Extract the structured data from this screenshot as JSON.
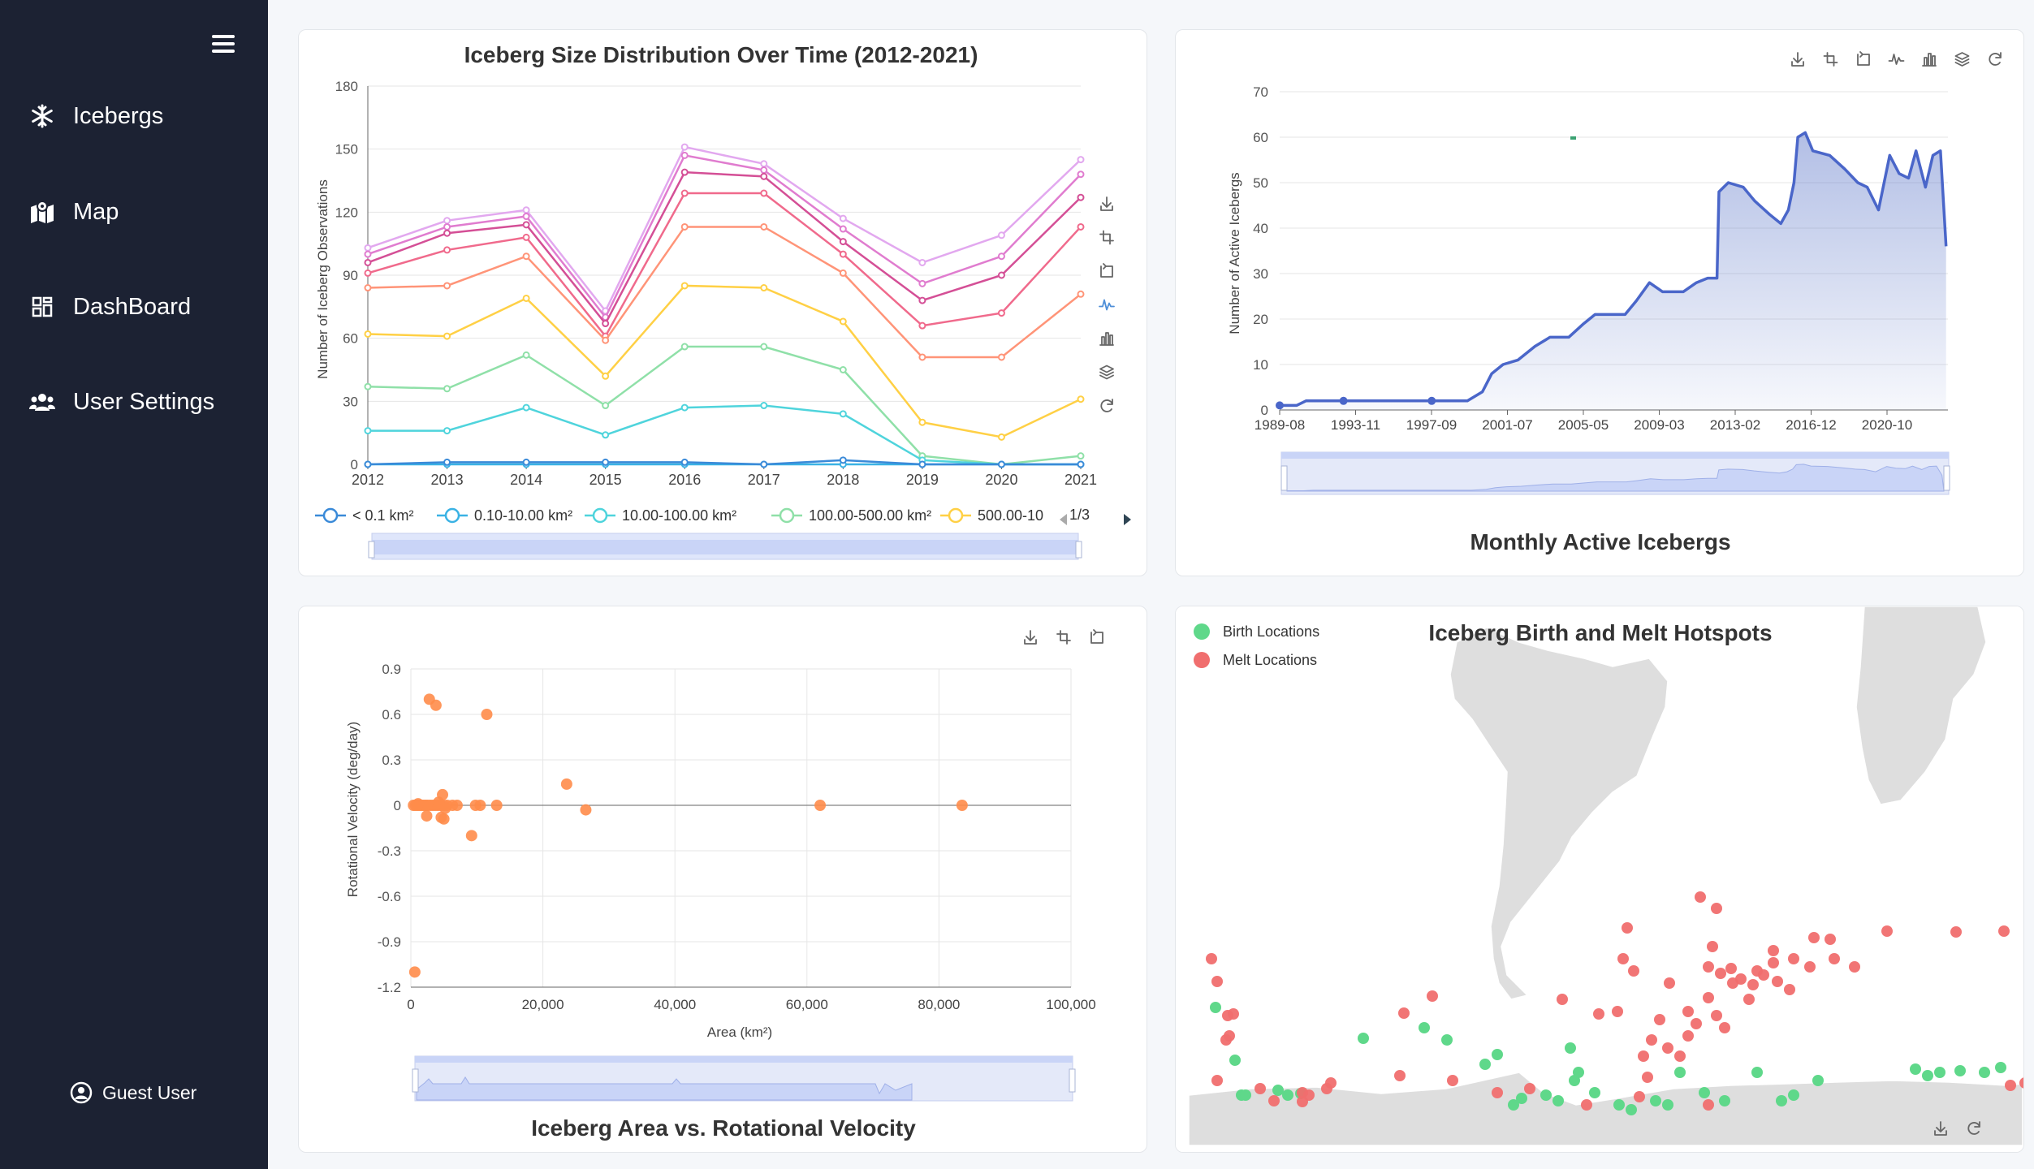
{
  "sidebar": {
    "items": [
      {
        "label": "Icebergs",
        "icon": "snowflake-icon"
      },
      {
        "label": "Map",
        "icon": "map-icon"
      },
      {
        "label": "DashBoard",
        "icon": "dashboard-icon"
      },
      {
        "label": "User Settings",
        "icon": "users-icon"
      }
    ],
    "user": "Guest User"
  },
  "colors": {
    "sidebar": "#1c2233",
    "accent": "#5470c6",
    "scatter": "#ff8c4a",
    "birth": "#5fd88a",
    "melt": "#f06e6e"
  },
  "toolbars": {
    "size_chart": [
      "download-icon",
      "zoom-icon",
      "zoom-reset-icon",
      "line-type-icon",
      "bar-type-icon",
      "stack-icon",
      "restore-icon"
    ],
    "active_chart": [
      "download-icon",
      "zoom-icon",
      "zoom-reset-icon",
      "line-type-icon",
      "bar-type-icon",
      "stack-icon",
      "restore-icon"
    ],
    "scatter_chart": [
      "download-icon",
      "zoom-icon",
      "zoom-reset-icon"
    ],
    "map_chart": [
      "download-icon",
      "restore-icon"
    ]
  },
  "size_chart": {
    "legend_page": "1/3",
    "chart_data": {
      "type": "line",
      "title": "Iceberg Size Distribution Over Time (2012-2021)",
      "ylabel": "Number of Iceberg Observations",
      "xlabel": "",
      "x": [
        "2012",
        "2013",
        "2014",
        "2015",
        "2016",
        "2017",
        "2018",
        "2019",
        "2020",
        "2021"
      ],
      "ylim": [
        0,
        180
      ],
      "yticks": [
        0,
        30,
        60,
        90,
        120,
        150,
        180
      ],
      "grid": true,
      "legend_position": "bottom",
      "series": [
        {
          "name": "< 0.1 km²",
          "color": "#3a8ad8",
          "values": [
            0,
            1,
            1,
            1,
            1,
            0,
            2,
            0,
            0,
            0
          ]
        },
        {
          "name": "0.10-10.00 km²",
          "color": "#3ab2e4",
          "values": [
            0,
            0,
            0,
            0,
            0,
            0,
            0,
            0,
            0,
            0
          ]
        },
        {
          "name": "10.00-100.00 km²",
          "color": "#4fd4dc",
          "values": [
            16,
            16,
            27,
            14,
            27,
            28,
            24,
            2,
            0,
            0
          ]
        },
        {
          "name": "100.00-500.00 km²",
          "color": "#8fe0a8",
          "values": [
            37,
            36,
            52,
            28,
            56,
            56,
            45,
            4,
            0,
            4
          ]
        },
        {
          "name": "500.00-10",
          "color": "#ffd045",
          "values": [
            62,
            61,
            79,
            42,
            85,
            84,
            68,
            20,
            13,
            31
          ]
        },
        {
          "name": "",
          "color": "#ff9478",
          "values": [
            84,
            85,
            99,
            59,
            113,
            113,
            91,
            51,
            51,
            81
          ]
        },
        {
          "name": "",
          "color": "#f06a8c",
          "values": [
            91,
            102,
            108,
            61,
            129,
            129,
            100,
            66,
            72,
            113
          ]
        },
        {
          "name": "",
          "color": "#d44f96",
          "values": [
            96,
            110,
            114,
            67,
            139,
            137,
            106,
            78,
            90,
            127
          ]
        },
        {
          "name": "",
          "color": "#e07ccf",
          "values": [
            100,
            113,
            118,
            70,
            147,
            140,
            112,
            86,
            99,
            138
          ]
        },
        {
          "name": "",
          "color": "#e2a8ef",
          "values": [
            103,
            116,
            121,
            73,
            151,
            143,
            117,
            96,
            109,
            145
          ]
        }
      ]
    }
  },
  "active_chart": {
    "chart_data": {
      "type": "area",
      "title": "Monthly Active Icebergs",
      "ylabel": "Number of Active Icebergs",
      "xlabel": "",
      "x_ticks": [
        "1989-08",
        "1993-11",
        "1997-09",
        "2001-07",
        "2005-05",
        "2009-03",
        "2013-02",
        "2016-12",
        "2020-10"
      ],
      "ylim": [
        0,
        70
      ],
      "yticks": [
        0,
        10,
        20,
        30,
        40,
        50,
        60,
        70
      ],
      "grid": true,
      "series": [
        {
          "points": [
            [
              1989.6,
              1
            ],
            [
              1990.5,
              1
            ],
            [
              1991.0,
              2
            ],
            [
              1995.5,
              2
            ],
            [
              1999.6,
              2
            ],
            [
              2000.4,
              4
            ],
            [
              2000.9,
              8
            ],
            [
              2001.5,
              10
            ],
            [
              2002.3,
              11
            ],
            [
              2003.2,
              14
            ],
            [
              2004.0,
              16
            ],
            [
              2005.0,
              16
            ],
            [
              2005.8,
              19
            ],
            [
              2006.4,
              21
            ],
            [
              2008.0,
              21
            ],
            [
              2008.6,
              24
            ],
            [
              2009.3,
              28
            ],
            [
              2010.0,
              26
            ],
            [
              2011.1,
              26
            ],
            [
              2011.8,
              28
            ],
            [
              2012.4,
              29
            ],
            [
              2012.9,
              29
            ],
            [
              2013.0,
              48
            ],
            [
              2013.5,
              50
            ],
            [
              2014.3,
              49
            ],
            [
              2014.9,
              46
            ],
            [
              2015.7,
              43
            ],
            [
              2016.3,
              41
            ],
            [
              2016.7,
              44
            ],
            [
              2017.0,
              50
            ],
            [
              2017.2,
              60
            ],
            [
              2017.6,
              61
            ],
            [
              2018.0,
              57
            ],
            [
              2018.9,
              56
            ],
            [
              2019.7,
              53
            ],
            [
              2020.4,
              50
            ],
            [
              2020.9,
              49
            ],
            [
              2021.5,
              44
            ],
            [
              2022.1,
              56
            ],
            [
              2022.6,
              52
            ],
            [
              2023.1,
              51
            ],
            [
              2023.5,
              57
            ],
            [
              2024.0,
              49
            ],
            [
              2024.4,
              56
            ],
            [
              2024.8,
              57
            ],
            [
              2025.1,
              36
            ]
          ]
        }
      ]
    }
  },
  "scatter_chart": {
    "chart_data": {
      "type": "scatter",
      "title": "Iceberg Area vs. Rotational Velocity",
      "xlabel": "Area (km²)",
      "ylabel": "Rotational Velocity (deg/day)",
      "xlim": [
        0,
        100000
      ],
      "ylim": [
        -1.2,
        0.9
      ],
      "xticks": [
        "0",
        "20,000",
        "40,000",
        "60,000",
        "80,000",
        "100,000"
      ],
      "yticks": [
        "0.9",
        "0.6",
        "0.3",
        "0",
        "-0.3",
        "-0.6",
        "-0.9",
        "-1.2"
      ],
      "grid": true,
      "points": [
        [
          2800,
          0.7
        ],
        [
          3800,
          0.66
        ],
        [
          11500,
          0.6
        ],
        [
          23600,
          0.14
        ],
        [
          26500,
          -0.03
        ],
        [
          62000,
          0
        ],
        [
          83500,
          0
        ],
        [
          600,
          -1.1
        ],
        [
          4800,
          0.07
        ],
        [
          9200,
          -0.2
        ],
        [
          2400,
          -0.07
        ],
        [
          4600,
          -0.08
        ],
        [
          5000,
          -0.09
        ],
        [
          400,
          0
        ],
        [
          700,
          0
        ],
        [
          1000,
          0
        ],
        [
          1300,
          0
        ],
        [
          1600,
          0
        ],
        [
          1900,
          0
        ],
        [
          2200,
          0
        ],
        [
          2500,
          0
        ],
        [
          2900,
          0
        ],
        [
          3300,
          0
        ],
        [
          3700,
          0
        ],
        [
          4100,
          0
        ],
        [
          4500,
          0
        ],
        [
          5000,
          0
        ],
        [
          5500,
          0
        ],
        [
          6300,
          0
        ],
        [
          7000,
          0
        ],
        [
          9800,
          0
        ],
        [
          10500,
          0
        ],
        [
          13000,
          0
        ],
        [
          4200,
          0.02
        ],
        [
          5200,
          -0.02
        ],
        [
          1100,
          0.01
        ]
      ]
    }
  },
  "map_chart": {
    "title": "Iceberg Birth and Melt Hotspots",
    "legend": [
      {
        "label": "Birth Locations",
        "color": "#5fd88a"
      },
      {
        "label": "Melt Locations",
        "color": "#f06e6e"
      }
    ],
    "birth_points": [
      [
        33,
        1240
      ],
      [
        57,
        1305
      ],
      [
        65,
        1348
      ],
      [
        70,
        1348
      ],
      [
        110,
        1342
      ],
      [
        122,
        1348
      ],
      [
        138,
        1346
      ],
      [
        215,
        1278
      ],
      [
        290,
        1265
      ],
      [
        318,
        1280
      ],
      [
        365,
        1310
      ],
      [
        380,
        1298
      ],
      [
        400,
        1360
      ],
      [
        410,
        1352
      ],
      [
        440,
        1348
      ],
      [
        455,
        1355
      ],
      [
        470,
        1290
      ],
      [
        475,
        1330
      ],
      [
        480,
        1320
      ],
      [
        500,
        1345
      ],
      [
        530,
        1360
      ],
      [
        545,
        1366
      ],
      [
        575,
        1355
      ],
      [
        590,
        1360
      ],
      [
        605,
        1320
      ],
      [
        635,
        1345
      ],
      [
        660,
        1355
      ],
      [
        700,
        1320
      ],
      [
        730,
        1355
      ],
      [
        745,
        1348
      ],
      [
        775,
        1330
      ],
      [
        895,
        1316
      ],
      [
        910,
        1324
      ],
      [
        925,
        1320
      ],
      [
        950,
        1318
      ],
      [
        980,
        1320
      ],
      [
        1000,
        1314
      ],
      [
        1050,
        1312
      ],
      [
        1080,
        1312
      ],
      [
        1130,
        1310
      ],
      [
        1150,
        1310
      ],
      [
        1170,
        1316
      ],
      [
        1225,
        1313
      ],
      [
        1265,
        1313
      ],
      [
        1290,
        1314
      ],
      [
        1304,
        1316
      ],
      [
        1345,
        1313
      ],
      [
        1360,
        1316
      ]
    ],
    "melt_points": [
      [
        630,
        1104
      ],
      [
        650,
        1118
      ],
      [
        540,
        1142
      ],
      [
        300,
        1226
      ],
      [
        265,
        1247
      ],
      [
        460,
        1230
      ],
      [
        690,
        1230
      ],
      [
        645,
        1165
      ],
      [
        505,
        1248
      ],
      [
        770,
        1154
      ],
      [
        790,
        1156
      ],
      [
        860,
        1146
      ],
      [
        945,
        1147
      ],
      [
        1004,
        1146
      ],
      [
        1065,
        1134
      ],
      [
        1132,
        1122
      ],
      [
        1283,
        1147
      ],
      [
        592,
        1210
      ],
      [
        720,
        1185
      ],
      [
        670,
        1210
      ],
      [
        700,
        1195
      ],
      [
        640,
        1228
      ],
      [
        615,
        1245
      ],
      [
        580,
        1255
      ],
      [
        570,
        1280
      ],
      [
        560,
        1300
      ],
      [
        565,
        1326
      ],
      [
        555,
        1350
      ],
      [
        490,
        1360
      ],
      [
        420,
        1340
      ],
      [
        380,
        1345
      ],
      [
        325,
        1330
      ],
      [
        260,
        1324
      ],
      [
        175,
        1333
      ],
      [
        170,
        1340
      ],
      [
        140,
        1356
      ],
      [
        105,
        1355
      ],
      [
        88,
        1340
      ],
      [
        140,
        1345
      ],
      [
        148,
        1348
      ],
      [
        35,
        1330
      ],
      [
        50,
        1275
      ],
      [
        46,
        1280
      ],
      [
        48,
        1250
      ],
      [
        35,
        1208
      ],
      [
        28,
        1180
      ],
      [
        55,
        1248
      ],
      [
        640,
        1360
      ],
      [
        720,
        1170
      ],
      [
        745,
        1180
      ],
      [
        765,
        1190
      ],
      [
        795,
        1180
      ],
      [
        820,
        1190
      ],
      [
        1012,
        1336
      ],
      [
        1030,
        1333
      ],
      [
        1050,
        1334
      ],
      [
        1085,
        1335
      ],
      [
        1100,
        1336
      ],
      [
        1060,
        1310
      ],
      [
        1130,
        1190
      ],
      [
        1345,
        1200
      ],
      [
        1395,
        1236
      ],
      [
        1255,
        1352
      ],
      [
        1270,
        1355
      ],
      [
        1230,
        1356
      ],
      [
        590,
        1290
      ],
      [
        605,
        1300
      ],
      [
        615,
        1275
      ],
      [
        625,
        1260
      ],
      [
        640,
        1190
      ],
      [
        655,
        1198
      ],
      [
        668,
        1192
      ],
      [
        680,
        1205
      ],
      [
        695,
        1212
      ],
      [
        708,
        1200
      ],
      [
        725,
        1208
      ],
      [
        740,
        1218
      ],
      [
        650,
        1250
      ],
      [
        660,
        1265
      ],
      [
        535,
        1180
      ],
      [
        548,
        1195
      ],
      [
        528,
        1245
      ]
    ]
  }
}
